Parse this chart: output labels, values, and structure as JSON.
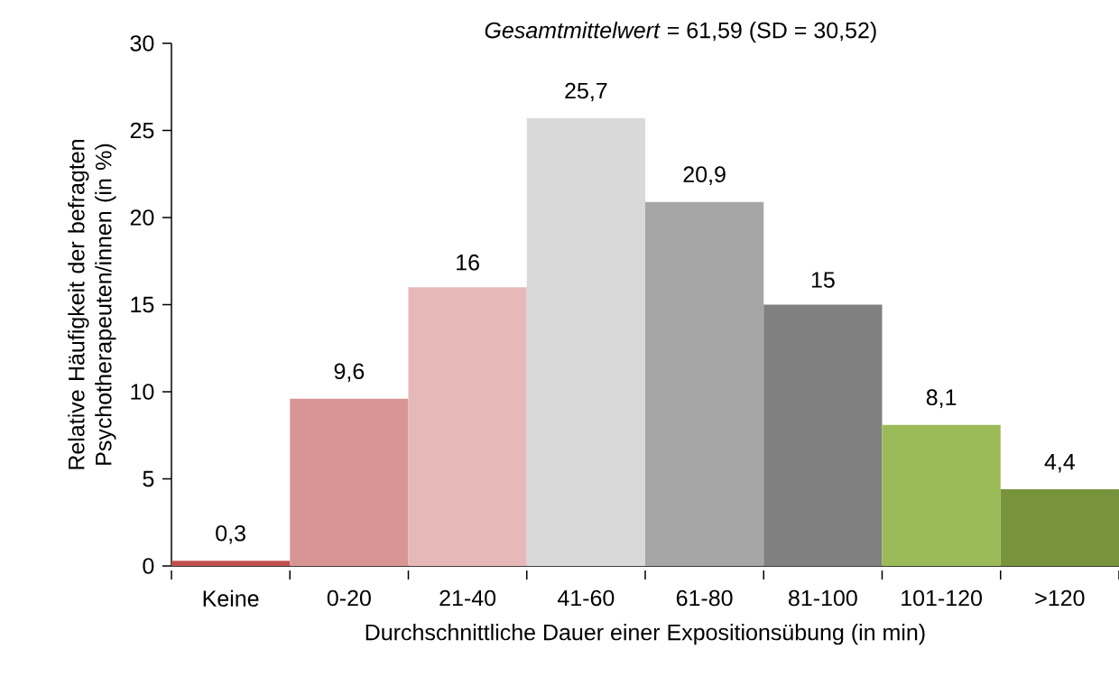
{
  "chart_data": {
    "type": "bar",
    "title": "*Gesamtmittelwert* = 61,59 (SD = 30,52)",
    "xlabel": "Durchschnittliche Dauer einer Expositionsübung (in min)",
    "ylabel": "Relative Häufigkeit der befragten Psychotherapeuten/innen (in %)",
    "categories": [
      "Keine",
      "0-20",
      "21-40",
      "41-60",
      "61-80",
      "81-100",
      "101-120",
      ">120"
    ],
    "values": [
      0.3,
      9.6,
      16,
      25.7,
      20.9,
      15,
      8.1,
      4.4
    ],
    "value_labels": [
      "0,3",
      "9,6",
      "16",
      "25,7",
      "20,9",
      "15",
      "8,1",
      "4,4"
    ],
    "colors": [
      "#c0504d",
      "#d99594",
      "#e6b9b8",
      "#d9d9d9",
      "#a6a6a6",
      "#808080",
      "#9bbb59",
      "#77933c"
    ],
    "ylim": [
      0,
      30
    ],
    "yticks": [
      0,
      5,
      10,
      15,
      20,
      25,
      30
    ],
    "grid": false
  }
}
